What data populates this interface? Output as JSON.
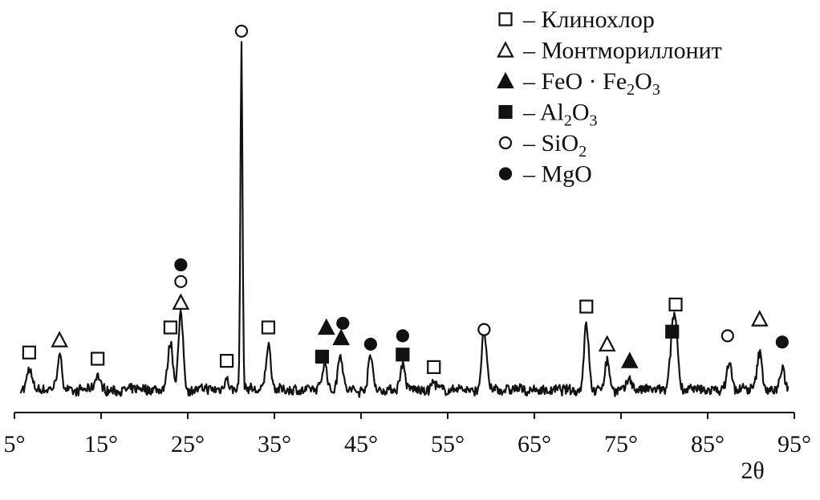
{
  "chart_data": {
    "type": "line",
    "x_label": "2θ",
    "x_unit_symbol": "°",
    "x_range": [
      5,
      95
    ],
    "x_ticks": [
      5,
      15,
      25,
      35,
      45,
      55,
      65,
      75,
      85,
      95
    ],
    "x_tick_labels": [
      "5°",
      "15°",
      "25°",
      "35°",
      "45°",
      "55°",
      "65°",
      "75°",
      "85°",
      "95°"
    ],
    "y_axis_shown": false,
    "grid": false,
    "legend_position": "top-right",
    "legend": [
      {
        "marker": "open-square",
        "label": "– Клинохлор"
      },
      {
        "marker": "open-triangle",
        "label": "– Монтмориллонит"
      },
      {
        "marker": "filled-triangle",
        "label": "– FeO · Fe2O3",
        "parts": [
          "– FeO · Fe",
          "2",
          "O",
          "3"
        ]
      },
      {
        "marker": "filled-square",
        "label": "– Al2O3",
        "parts": [
          "– Al",
          "2",
          "O",
          "3"
        ]
      },
      {
        "marker": "open-circle",
        "label": "– SiO2",
        "parts": [
          "– SiO",
          "2"
        ]
      },
      {
        "marker": "filled-circle",
        "label": "– MgO"
      }
    ],
    "baseline_intensity": 8,
    "peaks": [
      {
        "x": 6.7,
        "intensity": 18
      },
      {
        "x": 10.2,
        "intensity": 24
      },
      {
        "x": 14.6,
        "intensity": 15
      },
      {
        "x": 23.0,
        "intensity": 30
      },
      {
        "x": 24.2,
        "intensity": 44
      },
      {
        "x": 29.5,
        "intensity": 14
      },
      {
        "x": 31.2,
        "intensity": 172
      },
      {
        "x": 34.3,
        "intensity": 30
      },
      {
        "x": 40.8,
        "intensity": 22
      },
      {
        "x": 42.6,
        "intensity": 26
      },
      {
        "x": 46.1,
        "intensity": 24
      },
      {
        "x": 49.8,
        "intensity": 20
      },
      {
        "x": 53.4,
        "intensity": 12
      },
      {
        "x": 59.2,
        "intensity": 36
      },
      {
        "x": 71.0,
        "intensity": 40
      },
      {
        "x": 73.4,
        "intensity": 22
      },
      {
        "x": 76.0,
        "intensity": 14
      },
      {
        "x": 80.9,
        "intensity": 28
      },
      {
        "x": 81.3,
        "intensity": 34
      },
      {
        "x": 87.5,
        "intensity": 22
      },
      {
        "x": 91.0,
        "intensity": 26
      },
      {
        "x": 93.6,
        "intensity": 18
      }
    ],
    "annotations": [
      {
        "x": 6.7,
        "y": 26,
        "marker": "open-square"
      },
      {
        "x": 10.2,
        "y": 32,
        "marker": "open-triangle"
      },
      {
        "x": 14.6,
        "y": 23,
        "marker": "open-square"
      },
      {
        "x": 23.0,
        "y": 38,
        "marker": "open-square"
      },
      {
        "x": 24.2,
        "y": 50,
        "marker": "open-triangle"
      },
      {
        "x": 24.2,
        "y": 60,
        "marker": "open-circle"
      },
      {
        "x": 24.2,
        "y": 68,
        "marker": "filled-circle"
      },
      {
        "x": 29.5,
        "y": 22,
        "marker": "open-square"
      },
      {
        "x": 31.2,
        "y": 180,
        "marker": "open-circle"
      },
      {
        "x": 34.3,
        "y": 38,
        "marker": "open-square"
      },
      {
        "x": 40.5,
        "y": 24,
        "marker": "filled-square"
      },
      {
        "x": 41.0,
        "y": 38,
        "marker": "filled-triangle"
      },
      {
        "x": 42.7,
        "y": 33,
        "marker": "filled-triangle"
      },
      {
        "x": 42.9,
        "y": 40,
        "marker": "filled-circle"
      },
      {
        "x": 46.1,
        "y": 30,
        "marker": "filled-circle"
      },
      {
        "x": 49.8,
        "y": 25,
        "marker": "filled-square"
      },
      {
        "x": 49.8,
        "y": 34,
        "marker": "filled-circle"
      },
      {
        "x": 53.4,
        "y": 19,
        "marker": "open-square"
      },
      {
        "x": 59.2,
        "y": 37,
        "marker": "open-circle"
      },
      {
        "x": 71.0,
        "y": 48,
        "marker": "open-square"
      },
      {
        "x": 73.4,
        "y": 30,
        "marker": "open-triangle"
      },
      {
        "x": 76.0,
        "y": 22,
        "marker": "filled-triangle"
      },
      {
        "x": 80.9,
        "y": 36,
        "marker": "filled-square"
      },
      {
        "x": 81.3,
        "y": 49,
        "marker": "open-square"
      },
      {
        "x": 87.3,
        "y": 34,
        "marker": "open-circle"
      },
      {
        "x": 91.0,
        "y": 42,
        "marker": "open-triangle"
      },
      {
        "x": 93.6,
        "y": 31,
        "marker": "filled-circle"
      }
    ]
  }
}
